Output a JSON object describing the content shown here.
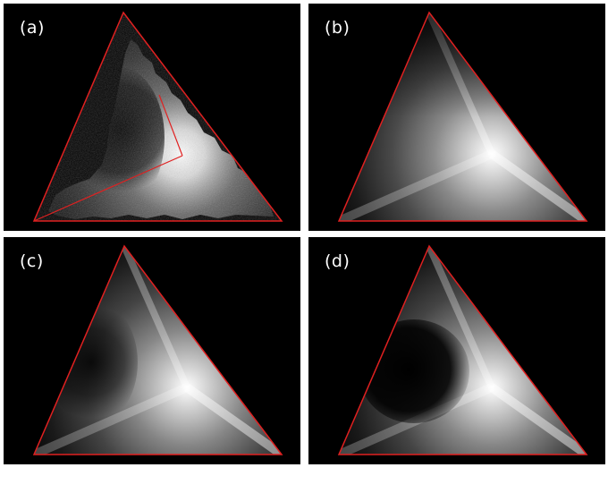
{
  "figure": {
    "panels": [
      {
        "id": "a",
        "label": "(a)"
      },
      {
        "id": "b",
        "label": "(b)"
      },
      {
        "id": "c",
        "label": "(c)"
      },
      {
        "id": "d",
        "label": "(d)"
      }
    ],
    "colors": {
      "background": "#000000",
      "triangle_outline": "#e02020",
      "label_text": "#ffffff",
      "page_background": "#ffffff"
    }
  }
}
